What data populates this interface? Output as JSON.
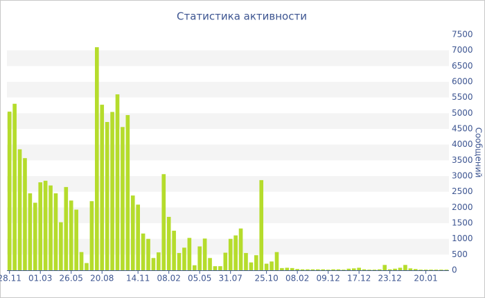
{
  "chart_data": {
    "type": "bar",
    "title": "Статистика активности",
    "y_label": "Сообщений",
    "categories": [
      "28.11",
      null,
      null,
      null,
      null,
      null,
      "01.03",
      null,
      null,
      null,
      null,
      null,
      "26.05",
      null,
      null,
      null,
      null,
      null,
      "20.08",
      null,
      null,
      null,
      null,
      null,
      null,
      "14.11",
      null,
      null,
      null,
      null,
      null,
      "08.02",
      null,
      null,
      null,
      null,
      null,
      "05.05",
      null,
      null,
      null,
      null,
      null,
      "31.07",
      null,
      null,
      null,
      null,
      null,
      null,
      "25.10",
      null,
      null,
      null,
      null,
      null,
      "08.02",
      null,
      null,
      null,
      null,
      null,
      "09.12",
      null,
      null,
      null,
      null,
      null,
      "17.12",
      null,
      null,
      null,
      null,
      null,
      "23.12",
      null,
      null,
      null,
      null,
      null,
      null,
      "20.01",
      null,
      null,
      null,
      null
    ],
    "values": [
      5050,
      5300,
      3850,
      3570,
      2450,
      2150,
      2800,
      2850,
      2700,
      2450,
      1530,
      2650,
      2220,
      1930,
      580,
      230,
      2200,
      7100,
      5270,
      4720,
      5040,
      5600,
      4560,
      4940,
      2380,
      2090,
      1170,
      1000,
      390,
      570,
      3060,
      1700,
      1260,
      550,
      720,
      1030,
      160,
      760,
      1010,
      390,
      130,
      130,
      560,
      1000,
      1110,
      1330,
      550,
      250,
      480,
      2870,
      210,
      280,
      580,
      70,
      80,
      70,
      40,
      30,
      30,
      30,
      30,
      30,
      20,
      30,
      30,
      20,
      50,
      60,
      80,
      30,
      20,
      20,
      30,
      170,
      30,
      50,
      80,
      170,
      60,
      40,
      20,
      20,
      20,
      20,
      20,
      20
    ],
    "color": "#b5dc2c",
    "ylim": [
      0,
      7500
    ],
    "yticks": [
      0,
      500,
      1000,
      1500,
      2000,
      2500,
      3000,
      3500,
      4000,
      4500,
      5000,
      5500,
      6000,
      6500,
      7000,
      7500
    ],
    "grid": true
  }
}
